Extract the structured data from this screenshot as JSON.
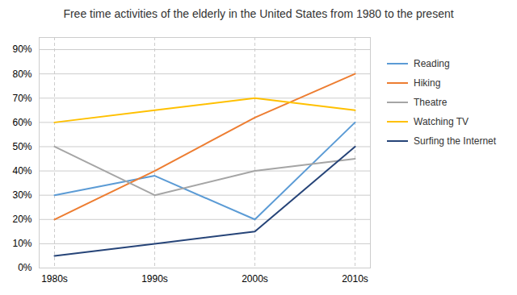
{
  "chart_data": {
    "type": "line",
    "title": "Free time activities of the elderly in the United States from 1980 to the present",
    "categories": [
      "1980s",
      "1990s",
      "2000s",
      "2010s"
    ],
    "series": [
      {
        "name": "Reading",
        "color": "#5B9BD5",
        "values": [
          30,
          38,
          20,
          60
        ]
      },
      {
        "name": "Hiking",
        "color": "#ED7D31",
        "values": [
          20,
          40,
          62,
          80
        ]
      },
      {
        "name": "Theatre",
        "color": "#A5A5A5",
        "values": [
          50,
          30,
          40,
          45
        ]
      },
      {
        "name": "Watching TV",
        "color": "#FFC000",
        "values": [
          60,
          65,
          70,
          65
        ]
      },
      {
        "name": "Surfing the Internet",
        "color": "#264478",
        "values": [
          5,
          10,
          15,
          50
        ]
      }
    ],
    "ylim": [
      0,
      95
    ],
    "yticks": [
      {
        "value": 0,
        "label": "0%"
      },
      {
        "value": 10,
        "label": "10%"
      },
      {
        "value": 20,
        "label": "20%"
      },
      {
        "value": 30,
        "label": "30%"
      },
      {
        "value": 40,
        "label": "40%"
      },
      {
        "value": 50,
        "label": "50%"
      },
      {
        "value": 60,
        "label": "60%"
      },
      {
        "value": 70,
        "label": "70%"
      },
      {
        "value": 80,
        "label": "80%"
      },
      {
        "value": 90,
        "label": "90%"
      }
    ],
    "grid": true,
    "legend": "right"
  }
}
